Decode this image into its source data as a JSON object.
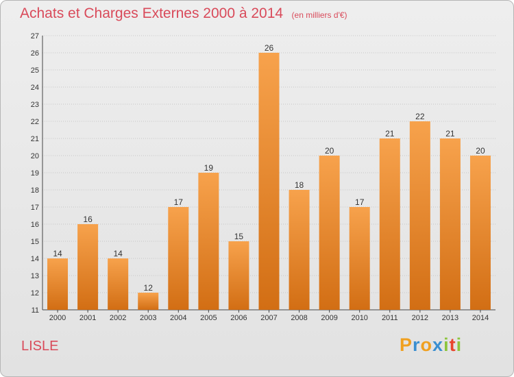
{
  "header": {
    "title": "Achats et Charges Externes 2000 à 2014",
    "unit": "(en milliers d'€)"
  },
  "footer": {
    "commune": "LISLE",
    "logo_letters": [
      "P",
      "r",
      "o",
      "x",
      "i",
      "t",
      "i"
    ],
    "logo_colors": [
      "#f0a020",
      "#3a8fd0",
      "#f0a020",
      "#3a8fd0",
      "#8cc43c",
      "#e8452d",
      "#8cc43c"
    ]
  },
  "colors": {
    "title": "#d94a5a",
    "bar_light": "#f7a24c",
    "bar_dark": "#d26e14",
    "grid": "#c6c6c6"
  },
  "chart_data": {
    "type": "bar",
    "title": "Achats et Charges Externes 2000 à 2014",
    "xlabel": "",
    "ylabel": "",
    "categories": [
      "2000",
      "2001",
      "2002",
      "2003",
      "2004",
      "2005",
      "2006",
      "2007",
      "2008",
      "2009",
      "2010",
      "2011",
      "2012",
      "2013",
      "2014"
    ],
    "values": [
      14,
      16,
      14,
      12,
      17,
      19,
      15,
      26,
      18,
      20,
      17,
      21,
      22,
      21,
      20
    ],
    "ylim": [
      11,
      27
    ],
    "yticks": [
      11,
      12,
      13,
      14,
      15,
      16,
      17,
      18,
      19,
      20,
      21,
      22,
      23,
      24,
      25,
      26,
      27
    ],
    "grid": true,
    "legend": "none"
  }
}
